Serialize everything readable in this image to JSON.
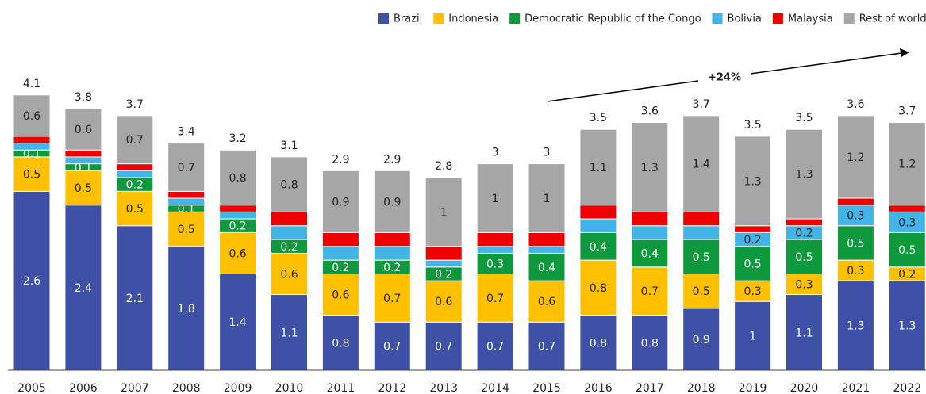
{
  "chart_data": {
    "type": "stacked_bar",
    "categories": [
      "2005",
      "2006",
      "2007",
      "2008",
      "2009",
      "2010",
      "2011",
      "2012",
      "2013",
      "2014",
      "2015",
      "2016",
      "2017",
      "2018",
      "2019",
      "2020",
      "2021",
      "2022"
    ],
    "series": [
      {
        "name": "Brazil",
        "color": "#3f51a6",
        "show_labels": true,
        "values": [
          2.6,
          2.4,
          2.1,
          1.8,
          1.4,
          1.1,
          0.8,
          0.7,
          0.7,
          0.7,
          0.7,
          0.8,
          0.8,
          0.9,
          1.0,
          1.1,
          1.3,
          1.3
        ]
      },
      {
        "name": "Indonesia",
        "color": "#ffc000",
        "show_labels": true,
        "values": [
          0.5,
          0.5,
          0.5,
          0.5,
          0.6,
          0.6,
          0.6,
          0.7,
          0.6,
          0.7,
          0.6,
          0.8,
          0.7,
          0.5,
          0.3,
          0.3,
          0.3,
          0.2
        ]
      },
      {
        "name": "Democratic Republic of the Congo",
        "color": "#0e9a3c",
        "show_labels": true,
        "values": [
          0.1,
          0.1,
          0.2,
          0.1,
          0.2,
          0.2,
          0.2,
          0.2,
          0.2,
          0.3,
          0.4,
          0.4,
          0.4,
          0.5,
          0.5,
          0.5,
          0.5,
          0.5
        ]
      },
      {
        "name": "Bolivia",
        "color": "#42b4e6",
        "show_labels": true,
        "values": [
          0.1,
          0.1,
          0.1,
          0.1,
          0.1,
          0.2,
          0.2,
          0.2,
          0.1,
          0.1,
          0.1,
          0.2,
          0.2,
          0.2,
          0.2,
          0.2,
          0.3,
          0.3
        ],
        "value_labels": [
          null,
          null,
          null,
          null,
          null,
          null,
          null,
          null,
          null,
          null,
          null,
          null,
          null,
          null,
          "0.2",
          "0.2",
          "0.3",
          "0.3"
        ]
      },
      {
        "name": "Malaysia",
        "color": "#ee0000",
        "show_labels": false,
        "values": [
          0.1,
          0.1,
          0.1,
          0.1,
          0.1,
          0.2,
          0.2,
          0.2,
          0.2,
          0.2,
          0.2,
          0.2,
          0.2,
          0.2,
          0.1,
          0.1,
          0.1,
          0.1
        ]
      },
      {
        "name": "Rest of world",
        "color": "#a6a6a6",
        "show_labels": true,
        "values": [
          0.6,
          0.6,
          0.7,
          0.7,
          0.8,
          0.8,
          0.9,
          0.9,
          1.0,
          1.0,
          1.0,
          1.1,
          1.3,
          1.4,
          1.3,
          1.3,
          1.2,
          1.2
        ]
      }
    ],
    "totals": [
      4.1,
      3.8,
      3.7,
      3.4,
      3.2,
      3.1,
      2.9,
      2.9,
      2.8,
      3.0,
      3.0,
      3.5,
      3.6,
      3.7,
      3.5,
      3.5,
      3.6,
      3.7
    ],
    "annotation": "+24%"
  }
}
